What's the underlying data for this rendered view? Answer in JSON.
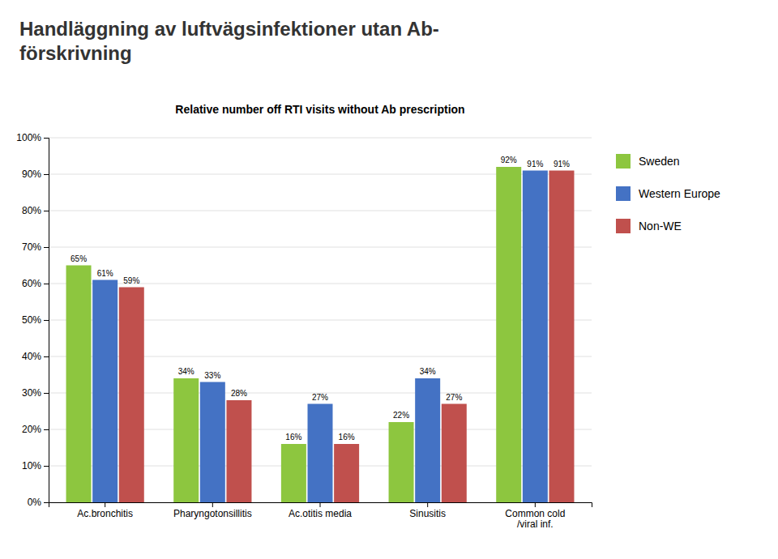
{
  "chart_data": {
    "type": "bar",
    "title": "Handläggning av luftvägsinfektioner utan Ab-\nförskrivning",
    "subtitle": "Relative number off RTI visits without Ab prescription",
    "categories": [
      "Ac.bronchitis",
      "Pharyngotonsillitis",
      "Ac.otitis media",
      "Sinusitis",
      "Common cold\n/viral inf."
    ],
    "series": [
      {
        "name": "Sweden",
        "color": "#8DC63F",
        "values": [
          65,
          34,
          16,
          22,
          92
        ],
        "value_labels": [
          "65%",
          "34%",
          "16%",
          "22%",
          "92%"
        ]
      },
      {
        "name": "Western Europe",
        "color": "#4472C4",
        "values": [
          61,
          33,
          27,
          34,
          91
        ],
        "value_labels": [
          "61%",
          "33%",
          "27%",
          "34%",
          "91%"
        ]
      },
      {
        "name": "Non-WE",
        "color": "#C0504D",
        "values": [
          59,
          28,
          16,
          27,
          91
        ],
        "value_labels": [
          "59%",
          "28%",
          "16%",
          "27%",
          "91%"
        ]
      }
    ],
    "ylim": [
      0,
      100
    ],
    "yticks": [
      {
        "value": 0,
        "label": "0%"
      },
      {
        "value": 10,
        "label": "10%"
      },
      {
        "value": 20,
        "label": "20%"
      },
      {
        "value": 30,
        "label": "30%"
      },
      {
        "value": 40,
        "label": "40%"
      },
      {
        "value": 50,
        "label": "50%"
      },
      {
        "value": 60,
        "label": "60%"
      },
      {
        "value": 70,
        "label": "70%"
      },
      {
        "value": 80,
        "label": "80%"
      },
      {
        "value": 90,
        "label": "90%"
      },
      {
        "value": 100,
        "label": "100%"
      }
    ],
    "grid": true,
    "legend": "right",
    "data_labels": true
  }
}
